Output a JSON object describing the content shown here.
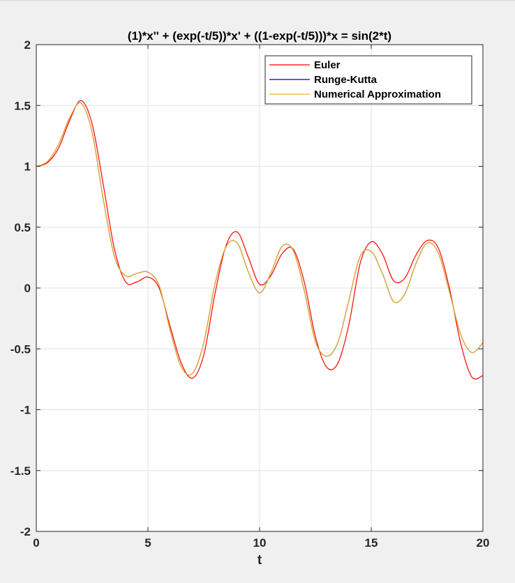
{
  "chart_data": {
    "type": "line",
    "title": "(1)*x'' + (exp(-t/5))*x' + ((1-exp(-t/5)))*x = sin(2*t)",
    "xlabel": "t",
    "ylabel": "",
    "xlim": [
      0,
      20
    ],
    "ylim": [
      -2,
      2
    ],
    "xticks": [
      0,
      5,
      10,
      15,
      20
    ],
    "yticks": [
      -2,
      -1.5,
      -1,
      -0.5,
      0,
      0.5,
      1,
      1.5,
      2
    ],
    "grid": true,
    "legend_position": "top-right",
    "series": [
      {
        "name": "Euler",
        "color": "#ff0000",
        "x": [
          0,
          0.5,
          1,
          1.5,
          2,
          2.5,
          3,
          3.5,
          4,
          4.5,
          5,
          5.5,
          6,
          6.5,
          7,
          7.5,
          8,
          8.5,
          9,
          9.5,
          10,
          10.5,
          11,
          11.5,
          12,
          12.5,
          13,
          13.5,
          14,
          14.5,
          15,
          15.5,
          16,
          16.5,
          17,
          17.5,
          18,
          18.5,
          19,
          19.5,
          20
        ],
        "y": [
          1.0,
          1.03,
          1.15,
          1.38,
          1.54,
          1.35,
          0.85,
          0.32,
          0.05,
          0.05,
          0.09,
          0.0,
          -0.32,
          -0.62,
          -0.74,
          -0.55,
          -0.05,
          0.35,
          0.46,
          0.25,
          0.03,
          0.1,
          0.28,
          0.32,
          0.05,
          -0.4,
          -0.65,
          -0.62,
          -0.3,
          0.2,
          0.38,
          0.28,
          0.06,
          0.08,
          0.27,
          0.39,
          0.33,
          0.0,
          -0.45,
          -0.73,
          -0.72
        ]
      },
      {
        "name": "Runge-Kutta",
        "color": "#000080",
        "x": [
          0,
          0.5,
          1,
          1.5,
          2,
          2.5,
          3,
          3.5,
          4,
          4.5,
          5,
          5.5,
          6,
          6.5,
          7,
          7.5,
          8,
          8.5,
          9,
          9.5,
          10,
          10.5,
          11,
          11.5,
          12,
          12.5,
          13,
          13.5,
          14,
          14.5,
          15,
          15.5,
          16,
          16.5,
          17,
          17.5,
          18,
          18.5,
          19,
          19.5,
          20
        ],
        "y": [
          1.0,
          1.04,
          1.18,
          1.4,
          1.52,
          1.28,
          0.73,
          0.26,
          0.1,
          0.12,
          0.13,
          0.02,
          -0.35,
          -0.65,
          -0.7,
          -0.45,
          0.03,
          0.34,
          0.37,
          0.13,
          -0.04,
          0.12,
          0.34,
          0.31,
          -0.02,
          -0.44,
          -0.56,
          -0.45,
          -0.1,
          0.26,
          0.3,
          0.12,
          -0.11,
          -0.05,
          0.2,
          0.37,
          0.29,
          -0.03,
          -0.38,
          -0.53,
          -0.45
        ]
      },
      {
        "name": "Numerical Approximation",
        "color": "#edb120",
        "x": [
          0,
          0.5,
          1,
          1.5,
          2,
          2.5,
          3,
          3.5,
          4,
          4.5,
          5,
          5.5,
          6,
          6.5,
          7,
          7.5,
          8,
          8.5,
          9,
          9.5,
          10,
          10.5,
          11,
          11.5,
          12,
          12.5,
          13,
          13.5,
          14,
          14.5,
          15,
          15.5,
          16,
          16.5,
          17,
          17.5,
          18,
          18.5,
          19,
          19.5,
          20
        ],
        "y": [
          1.0,
          1.04,
          1.18,
          1.4,
          1.52,
          1.28,
          0.73,
          0.26,
          0.1,
          0.12,
          0.13,
          0.02,
          -0.35,
          -0.65,
          -0.7,
          -0.45,
          0.03,
          0.34,
          0.37,
          0.13,
          -0.04,
          0.12,
          0.34,
          0.31,
          -0.02,
          -0.44,
          -0.56,
          -0.45,
          -0.1,
          0.26,
          0.3,
          0.12,
          -0.11,
          -0.05,
          0.2,
          0.37,
          0.29,
          -0.03,
          -0.38,
          -0.53,
          -0.45
        ]
      }
    ]
  }
}
